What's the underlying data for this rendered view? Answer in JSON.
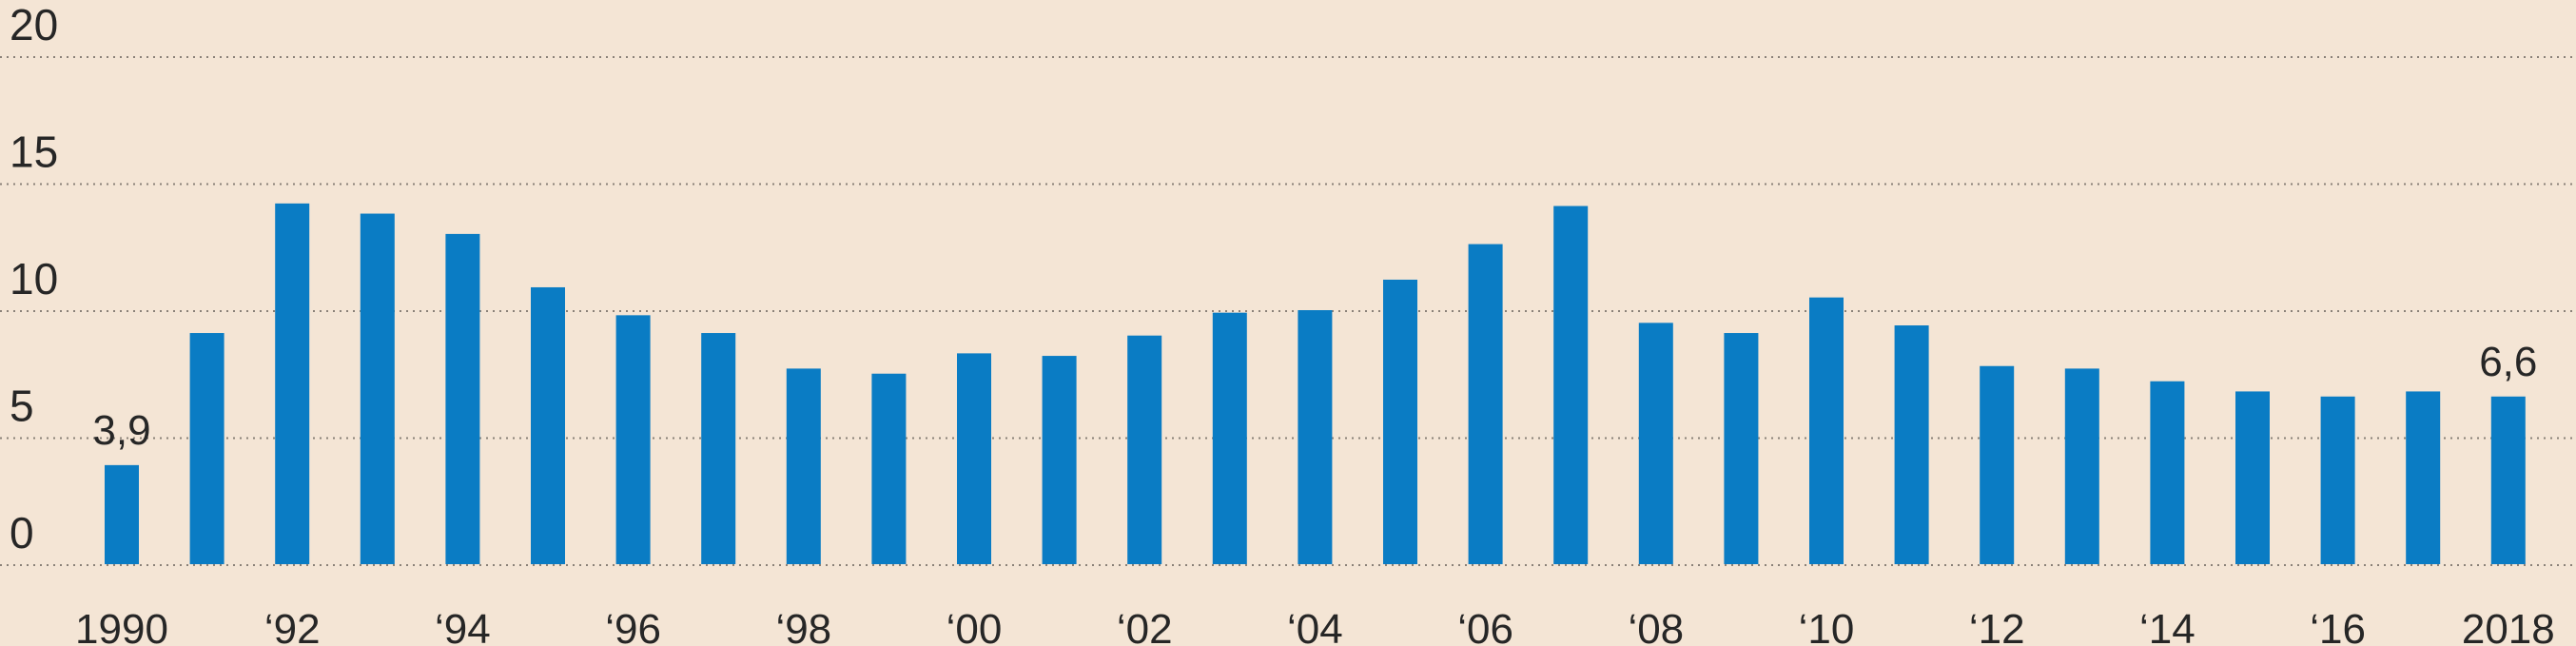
{
  "chart_data": {
    "type": "bar",
    "categories": [
      "1990",
      "1991",
      "1992",
      "1993",
      "1994",
      "1995",
      "1996",
      "1997",
      "1998",
      "1999",
      "2000",
      "2001",
      "2002",
      "2003",
      "2004",
      "2005",
      "2006",
      "2007",
      "2008",
      "2009",
      "2010",
      "2011",
      "2012",
      "2013",
      "2014",
      "2015",
      "2016",
      "2017",
      "2018"
    ],
    "values": [
      3.9,
      9.1,
      14.2,
      13.8,
      13.0,
      10.9,
      9.8,
      9.1,
      7.7,
      7.5,
      8.3,
      8.2,
      9.0,
      9.9,
      10.0,
      11.2,
      12.6,
      14.1,
      9.5,
      9.1,
      10.5,
      9.4,
      7.8,
      7.7,
      7.2,
      6.8,
      6.6,
      6.8,
      6.6
    ],
    "ylim": [
      0,
      20
    ],
    "y_ticks": [
      "0",
      "5",
      "10",
      "15",
      "20"
    ],
    "x_tick_labels": [
      "1990",
      "‘92",
      "‘94",
      "‘96",
      "‘98",
      "‘00",
      "‘02",
      "‘04",
      "‘06",
      "‘08",
      "‘10",
      "‘12",
      "‘14",
      "‘16",
      "2018"
    ],
    "data_labels": [
      {
        "category": "1990",
        "text": "3,9"
      },
      {
        "category": "2018",
        "text": "6,6"
      }
    ],
    "grid": true,
    "bar_color": "#0a7cc4",
    "background": "#f4e5d5"
  }
}
